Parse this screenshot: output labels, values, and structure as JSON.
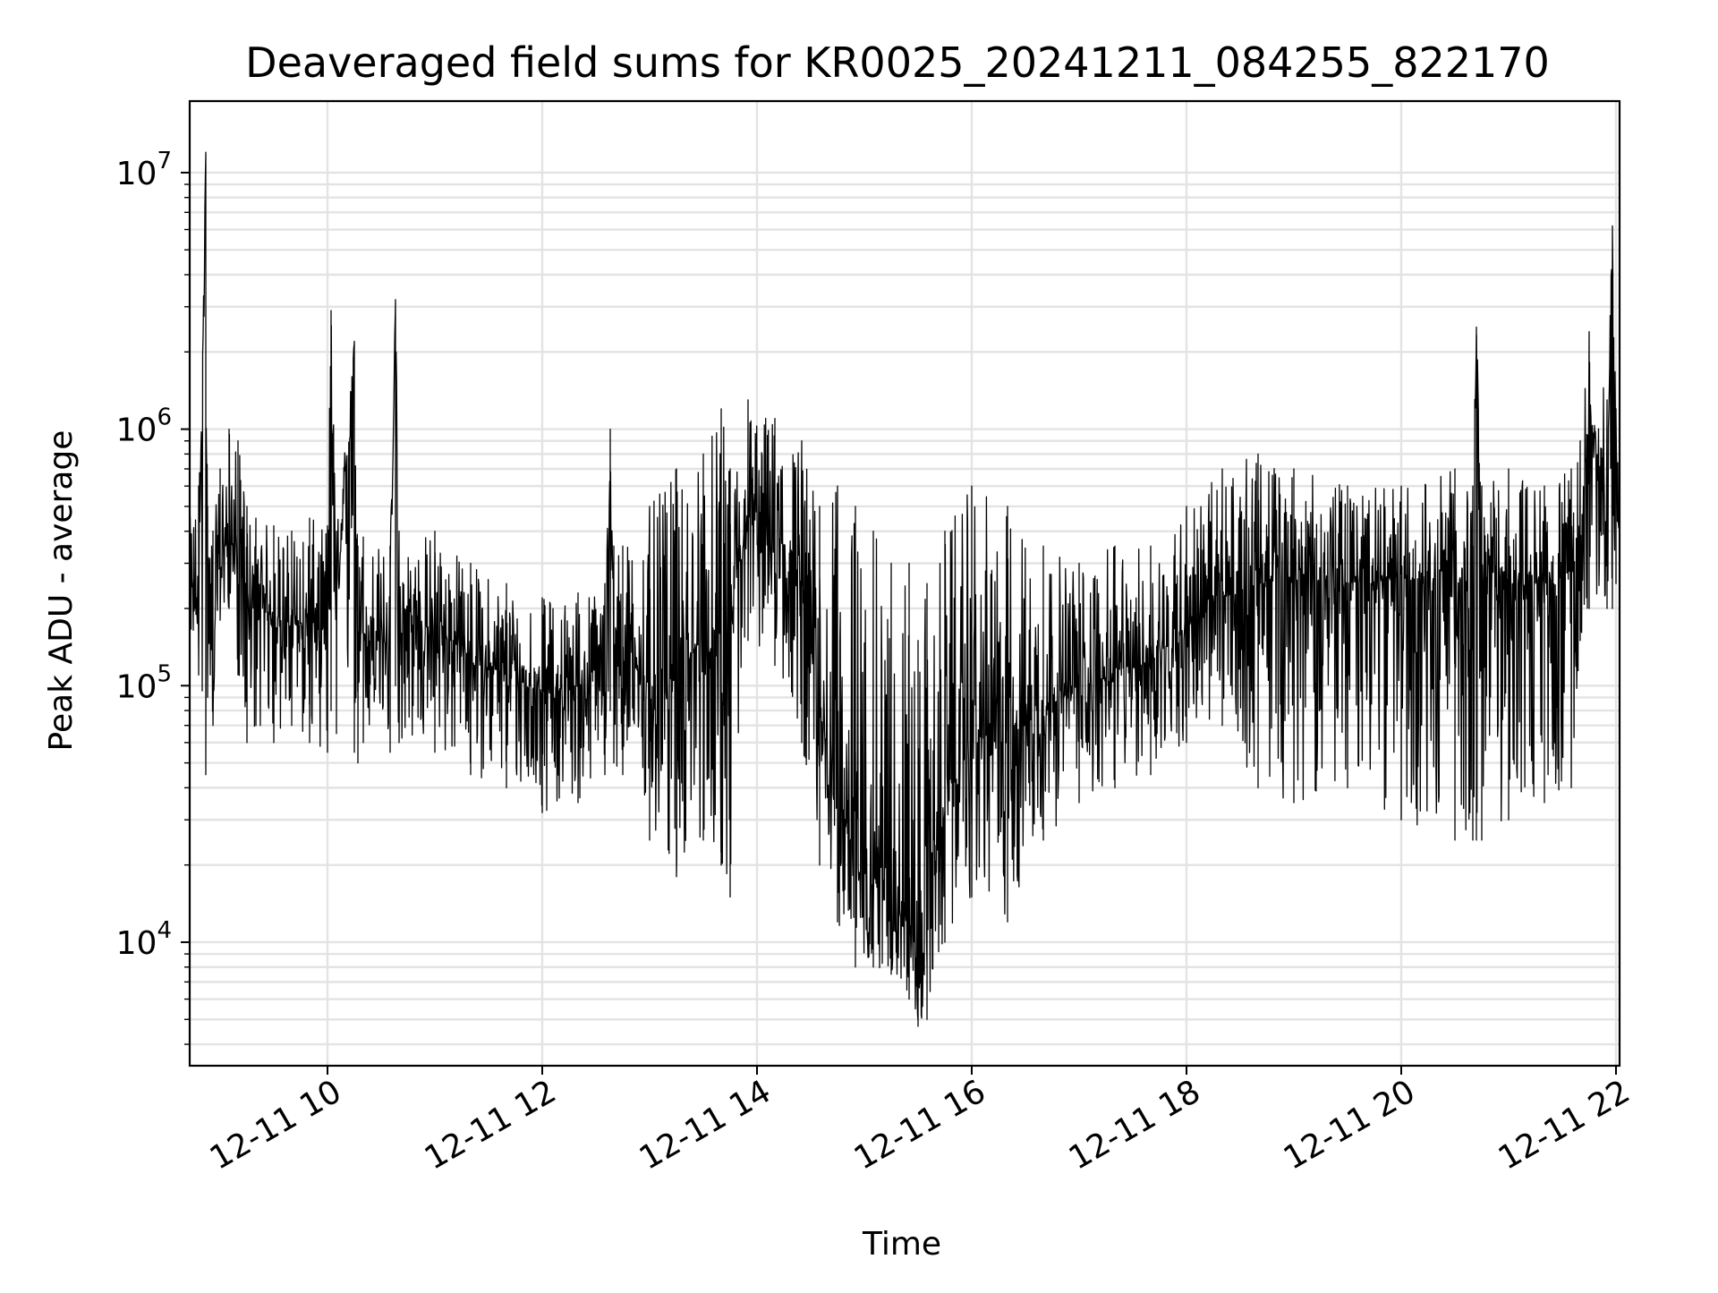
{
  "chart_data": {
    "type": "line",
    "title": "Deaveraged field sums for KR0025_20241211_084255_822170",
    "xlabel": "Time",
    "ylabel": "Peak ADU - average",
    "yscale": "log",
    "xlim": [
      "2024-12-11 08:43",
      "2024-12-11 22:02"
    ],
    "ylim": [
      3300,
      19000000
    ],
    "grid": true,
    "color": "#000000",
    "x_ticks": [
      "12-11 10",
      "12-11 12",
      "12-11 14",
      "12-11 16",
      "12-11 18",
      "12-11 20",
      "12-11 22"
    ],
    "y_ticks": [
      {
        "base": "10",
        "exp": "4",
        "value": 10000
      },
      {
        "base": "10",
        "exp": "5",
        "value": 100000
      },
      {
        "base": "10",
        "exp": "6",
        "value": 1000000
      },
      {
        "base": "10",
        "exp": "7",
        "value": 10000000
      }
    ],
    "series": [
      {
        "x": [
          "2024-12-11 08:43",
          "2024-12-11 08:48",
          "2024-12-11 08:52",
          "2024-12-11 08:53",
          "2024-12-11 08:56",
          "2024-12-11 09:00",
          "2024-12-11 09:05",
          "2024-12-11 09:10",
          "2024-12-11 09:15",
          "2024-12-11 09:20",
          "2024-12-11 09:30",
          "2024-12-11 09:40",
          "2024-12-11 09:50",
          "2024-12-11 10:00",
          "2024-12-11 10:02",
          "2024-12-11 10:05",
          "2024-12-11 10:15",
          "2024-12-11 10:17",
          "2024-12-11 10:20",
          "2024-12-11 10:35",
          "2024-12-11 10:38",
          "2024-12-11 10:40",
          "2024-12-11 11:00",
          "2024-12-11 11:20",
          "2024-12-11 11:40",
          "2024-12-11 12:00",
          "2024-12-11 12:20",
          "2024-12-11 12:35",
          "2024-12-11 12:38",
          "2024-12-11 12:40",
          "2024-12-11 12:45",
          "2024-12-11 13:00",
          "2024-12-11 13:15",
          "2024-12-11 13:30",
          "2024-12-11 13:40",
          "2024-12-11 13:45",
          "2024-12-11 13:55",
          "2024-12-11 14:10",
          "2024-12-11 14:25",
          "2024-12-11 14:35",
          "2024-12-11 14:45",
          "2024-12-11 14:55",
          "2024-12-11 15:05",
          "2024-12-11 15:15",
          "2024-12-11 15:25",
          "2024-12-11 15:30",
          "2024-12-11 15:35",
          "2024-12-11 15:45",
          "2024-12-11 16:00",
          "2024-12-11 16:20",
          "2024-12-11 16:40",
          "2024-12-11 17:00",
          "2024-12-11 17:20",
          "2024-12-11 17:40",
          "2024-12-11 18:00",
          "2024-12-11 18:20",
          "2024-12-11 18:40",
          "2024-12-11 19:00",
          "2024-12-11 19:30",
          "2024-12-11 20:00",
          "2024-12-11 20:30",
          "2024-12-11 20:40",
          "2024-12-11 20:42",
          "2024-12-11 20:45",
          "2024-12-11 21:00",
          "2024-12-11 21:20",
          "2024-12-11 21:35",
          "2024-12-11 21:40",
          "2024-12-11 21:45",
          "2024-12-11 21:55",
          "2024-12-11 21:58",
          "2024-12-11 22:00",
          "2024-12-11 22:02"
        ],
        "y": [
          250000,
          200000,
          12000000,
          250000,
          170000,
          300000,
          400000,
          300000,
          220000,
          200000,
          190000,
          170000,
          180000,
          160000,
          2900000,
          170000,
          2200000,
          160000,
          160000,
          150000,
          3200000,
          160000,
          170000,
          130000,
          110000,
          95000,
          100000,
          110000,
          700000,
          160000,
          140000,
          100000,
          110000,
          150000,
          110000,
          150000,
          450000,
          400000,
          250000,
          80000,
          40000,
          20000,
          18000,
          15000,
          14000,
          6000,
          12000,
          35000,
          60000,
          70000,
          80000,
          100000,
          110000,
          125000,
          170000,
          220000,
          250000,
          260000,
          250000,
          260000,
          260000,
          250000,
          2500000,
          250000,
          250000,
          250000,
          280000,
          320000,
          1200000,
          500000,
          6200000,
          450000,
          500000
        ],
        "low": [
          160000,
          110000,
          45000,
          90000,
          70000,
          180000,
          200000,
          110000,
          60000,
          70000,
          60000,
          70000,
          60000,
          55000,
          80000,
          65000,
          55000,
          50000,
          60000,
          55000,
          100000,
          60000,
          55000,
          45000,
          40000,
          32000,
          35000,
          45000,
          80000,
          50000,
          45000,
          25000,
          18000,
          25000,
          20000,
          15000,
          150000,
          120000,
          60000,
          20000,
          12000,
          8000,
          8000,
          7500,
          6000,
          4700,
          5000,
          10000,
          15000,
          12000,
          25000,
          35000,
          40000,
          45000,
          60000,
          70000,
          40000,
          35000,
          40000,
          30000,
          25000,
          25000,
          25000,
          25000,
          30000,
          35000,
          40000,
          150000,
          200000,
          200000,
          200000,
          250000,
          300000
        ],
        "high": [
          450000,
          600000,
          12000000,
          500000,
          400000,
          700000,
          1000000,
          900000,
          500000,
          450000,
          420000,
          400000,
          450000,
          420000,
          2900000,
          400000,
          2200000,
          350000,
          380000,
          350000,
          3200000,
          400000,
          400000,
          300000,
          250000,
          220000,
          230000,
          250000,
          1000000,
          350000,
          350000,
          500000,
          700000,
          800000,
          1200000,
          700000,
          1300000,
          1100000,
          900000,
          500000,
          600000,
          500000,
          400000,
          300000,
          300000,
          150000,
          250000,
          400000,
          600000,
          500000,
          350000,
          300000,
          350000,
          350000,
          500000,
          700000,
          800000,
          700000,
          600000,
          600000,
          700000,
          600000,
          2500000,
          600000,
          700000,
          600000,
          700000,
          900000,
          2400000,
          1300000,
          6200000,
          1200000,
          900000
        ]
      }
    ]
  }
}
